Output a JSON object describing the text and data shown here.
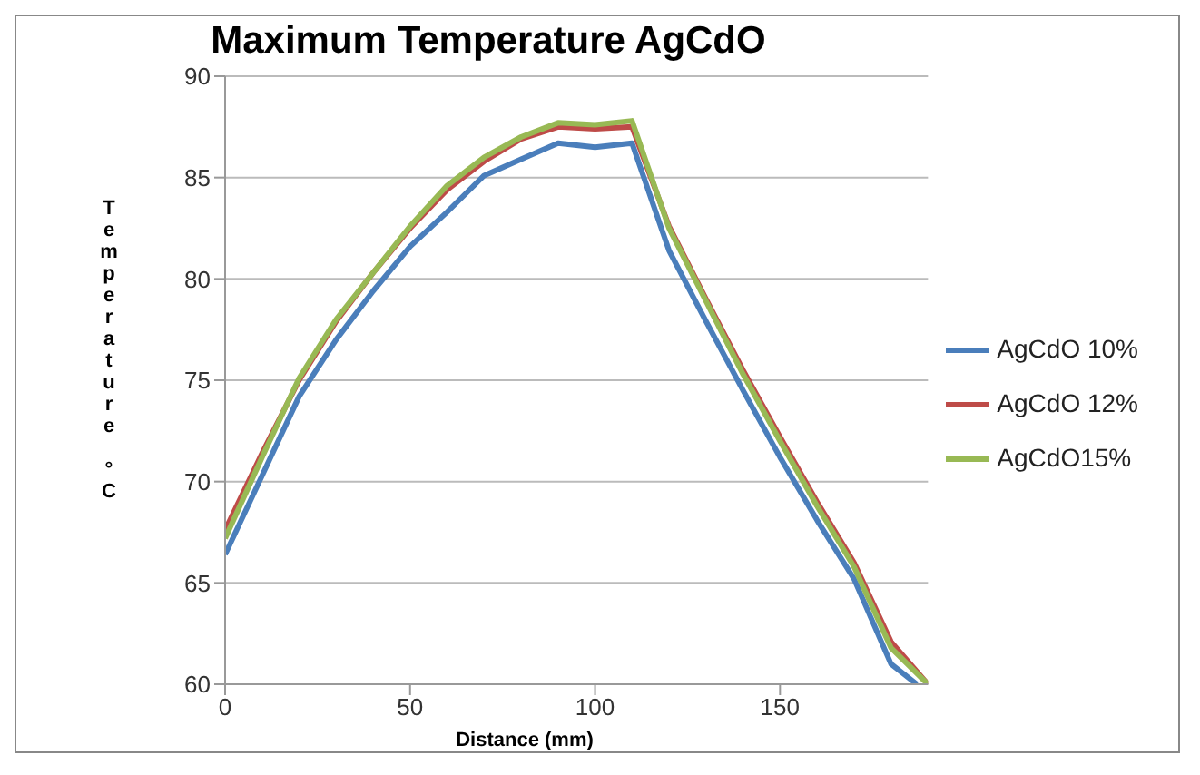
{
  "chart_data": {
    "type": "line",
    "title": "Maximum Temperature AgCdO",
    "xlabel": "Distance (mm)",
    "ylabel": "Temperature °C",
    "xlim": [
      0,
      190
    ],
    "xticks": [
      0,
      50,
      100,
      150
    ],
    "ylim": [
      60,
      90
    ],
    "yticks": [
      60,
      65,
      70,
      75,
      80,
      85,
      90
    ],
    "grid": "y",
    "legend": "right",
    "marker": "none",
    "line_style": "solid",
    "series": [
      {
        "name": "AgCdO 10%",
        "color": "#4a7ebb",
        "x": [
          0,
          10,
          20,
          30,
          40,
          50,
          60,
          70,
          80,
          90,
          100,
          110,
          120,
          130,
          140,
          150,
          160,
          170,
          180,
          187
        ],
        "values": [
          66.4,
          70.3,
          74.2,
          77.0,
          79.4,
          81.6,
          83.3,
          85.1,
          85.9,
          86.7,
          86.5,
          86.7,
          81.4,
          77.9,
          74.5,
          71.2,
          68.1,
          65.2,
          61.0,
          60
        ]
      },
      {
        "name": "AgCdO 12%",
        "color": "#be4b48",
        "x": [
          0,
          10,
          20,
          30,
          40,
          50,
          60,
          70,
          80,
          90,
          100,
          110,
          120,
          130,
          140,
          150,
          160,
          170,
          180,
          190
        ],
        "values": [
          67.6,
          71.4,
          75.0,
          77.9,
          80.3,
          82.5,
          84.4,
          85.8,
          86.9,
          87.5,
          87.4,
          87.5,
          82.6,
          79.0,
          75.5,
          72.2,
          69.0,
          66.0,
          62.1,
          60
        ]
      },
      {
        "name": "AgCdO15%",
        "color": "#98b954",
        "x": [
          0,
          10,
          20,
          30,
          40,
          50,
          60,
          70,
          80,
          90,
          100,
          110,
          120,
          130,
          140,
          150,
          160,
          170,
          180,
          190
        ],
        "values": [
          67.2,
          71.2,
          75.1,
          78.0,
          80.3,
          82.6,
          84.6,
          86.0,
          87.0,
          87.7,
          87.6,
          87.8,
          82.5,
          78.9,
          75.3,
          72.0,
          68.8,
          65.8,
          61.8,
          60
        ]
      }
    ]
  }
}
